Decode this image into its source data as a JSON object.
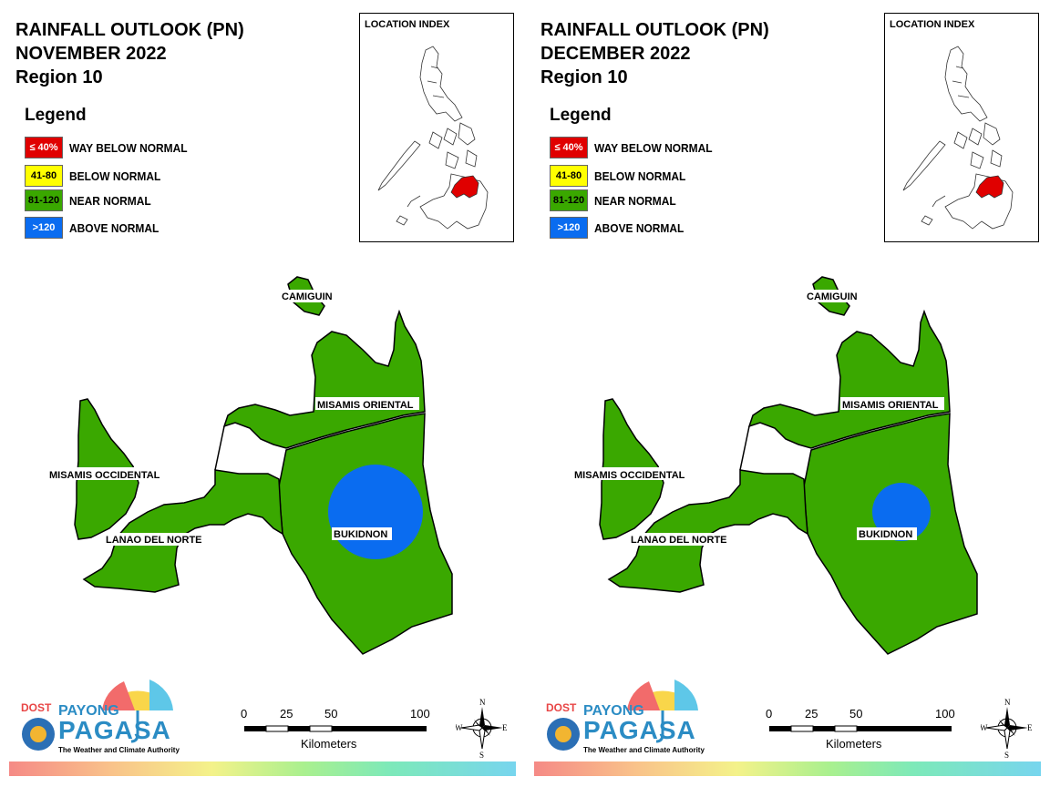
{
  "panels": [
    {
      "title_line1": "RAINFALL OUTLOOK (PN)",
      "title_line2": "NOVEMBER 2022",
      "title_line3": "Region 10",
      "bukidnon_blue_size": "large"
    },
    {
      "title_line1": "RAINFALL OUTLOOK (PN)",
      "title_line2": "DECEMBER 2022",
      "title_line3": "Region 10",
      "bukidnon_blue_size": "small"
    }
  ],
  "legend": {
    "title": "Legend",
    "items": [
      {
        "range": "≤ 40%",
        "label": "WAY BELOW NORMAL",
        "color": "#e00000",
        "text_color": "#ffffff"
      },
      {
        "range": "41-80",
        "label": "BELOW NORMAL",
        "color": "#ffff00",
        "text_color": "#000000"
      },
      {
        "range": "81-120",
        "label": "NEAR NORMAL",
        "color": "#3aa800",
        "text_color": "#000000"
      },
      {
        "range": ">120",
        "label": "ABOVE NORMAL",
        "color": "#0a6cf0",
        "text_color": "#ffffff"
      }
    ]
  },
  "inset": {
    "title": "LOCATION INDEX",
    "highlight_color": "#e00000"
  },
  "provinces": {
    "camiguin": "CAMIGUIN",
    "misamis_oriental": "MISAMIS ORIENTAL",
    "misamis_occidental": "MISAMIS OCCIDENTAL",
    "lanao_del_norte": "LANAO DEL NORTE",
    "bukidnon": "BUKIDNON"
  },
  "colors": {
    "near_normal": "#3aa800",
    "above_normal": "#0a6cf0"
  },
  "scale": {
    "ticks": [
      "0",
      "25",
      "50",
      "100"
    ],
    "unit": "Kilometers"
  },
  "compass": {
    "n": "N",
    "s": "S",
    "e": "E",
    "w": "W"
  },
  "logo": {
    "dost": "DOST",
    "payong": "PAYONG",
    "pagasa": "PAGASA",
    "tagline": "The Weather and Climate Authority"
  }
}
